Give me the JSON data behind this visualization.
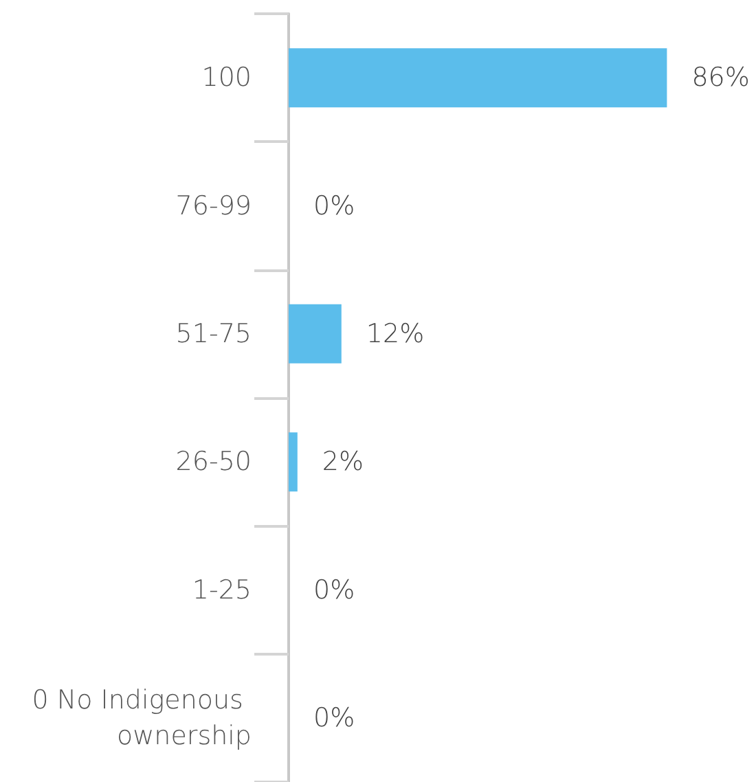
{
  "chart_data": {
    "type": "bar",
    "orientation": "horizontal",
    "categories": [
      "100",
      "76-99",
      "51-75",
      "26-50",
      "1-25",
      "0 No Indigenous ownership"
    ],
    "values": [
      86,
      0,
      12,
      2,
      0,
      0
    ],
    "value_labels": [
      "86%",
      "0%",
      "12%",
      "2%",
      "0%",
      "0%"
    ],
    "color": "#5bbdeb",
    "tick_labels": "y"
  }
}
